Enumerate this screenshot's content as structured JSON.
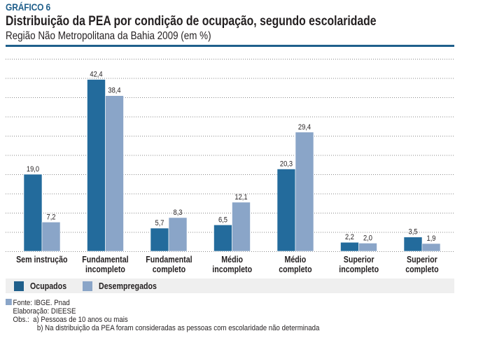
{
  "header": {
    "label": "GRÁFICO 6",
    "title": "Distribuição da PEA por condição de ocupação, segundo escolaridade",
    "subtitle": "Região Não Metropolitana da Bahia 2009 (em %)"
  },
  "colors": {
    "accent": "#1f5f8b",
    "ocupados": "#236b9c",
    "desempregados": "#8aa5c8",
    "legend_bg": "#efefef",
    "grid": "#8a8a8a"
  },
  "chart_data": {
    "type": "bar",
    "title": "Distribuição da PEA por condição de ocupação, segundo escolaridade",
    "subtitle": "Região Não Metropolitana da Bahia 2009 (em %)",
    "xlabel": "",
    "ylabel": "",
    "ylim": [
      0,
      47.5
    ],
    "grid": true,
    "grid_lines": 10,
    "legend_position": "bottom",
    "categories": [
      "Sem instrução",
      "Fundamental\nincompleto",
      "Fundamental\ncompleto",
      "Médio\nincompleto",
      "Médio\ncompleto",
      "Superior\nincompleto",
      "Superior\ncompleto"
    ],
    "series": [
      {
        "name": "Ocupados",
        "values": [
          19.0,
          42.4,
          5.7,
          6.5,
          20.3,
          2.2,
          3.5
        ],
        "labels": [
          "19,0",
          "42,4",
          "5,7",
          "6,5",
          "20,3",
          "2,2",
          "3,5"
        ]
      },
      {
        "name": "Desempregados",
        "values": [
          7.2,
          38.4,
          8.3,
          12.1,
          29.4,
          2.0,
          1.9
        ],
        "labels": [
          "7,2",
          "38,4",
          "8,3",
          "12,1",
          "29,4",
          "2,0",
          "1,9"
        ]
      }
    ]
  },
  "legend": {
    "items": [
      "Ocupados",
      "Desempregados"
    ]
  },
  "notes": {
    "source": "Fonte: IBGE. Pnad",
    "elaboration": "Elaboração: DIEESE",
    "obs_label": "Obs.:",
    "obs_a": "a) Pessoas de 10 anos ou mais",
    "obs_b": "b) Na distribuição da PEA foram consideradas as pessoas com escolaridade não determinada"
  }
}
